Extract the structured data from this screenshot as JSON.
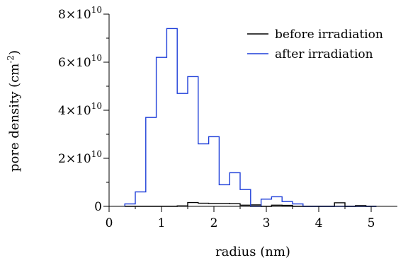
{
  "chart_data": {
    "type": "line",
    "xlabel": "radius (nm)",
    "ylabel": "pore density (cm",
    "ylabel_sup": "-2",
    "ylabel_close": ")",
    "xlim": [
      0,
      5.5
    ],
    "ylim": [
      0,
      80000000000
    ],
    "x_ticks": [
      0,
      1,
      2,
      3,
      4,
      5
    ],
    "x_tick_labels": [
      "0",
      "1",
      "2",
      "3",
      "4",
      "5"
    ],
    "y_ticks": [
      0,
      20000000000,
      40000000000,
      60000000000,
      80000000000
    ],
    "y_tick_labels": [
      {
        "base": "0",
        "exp": ""
      },
      {
        "base": "2×10",
        "exp": "10"
      },
      {
        "base": "4×10",
        "exp": "10"
      },
      {
        "base": "6×10",
        "exp": "10"
      },
      {
        "base": "8×10",
        "exp": "10"
      }
    ],
    "legend_position": "top-right",
    "bin_edges": [
      0.3,
      0.5,
      0.7,
      0.9,
      1.1,
      1.3,
      1.5,
      1.7,
      1.9,
      2.1,
      2.3,
      2.5,
      2.7,
      2.9,
      3.1,
      3.3,
      3.5,
      3.7,
      3.9,
      4.1,
      4.3,
      4.5,
      4.7,
      4.9,
      5.1
    ],
    "series": [
      {
        "name": "before irradiation",
        "color": "#000000",
        "values": [
          0,
          0,
          0,
          0,
          0,
          200000000,
          1600000000,
          1300000000,
          1200000000,
          1200000000,
          1100000000,
          500000000,
          600000000,
          0,
          500000000,
          400000000,
          0,
          0,
          0,
          0,
          1500000000,
          0,
          300000000,
          0
        ]
      },
      {
        "name": "after irradiation",
        "color": "#1f3fd9",
        "values": [
          1000000000,
          6000000000,
          37000000000,
          62000000000,
          74000000000,
          47000000000,
          54000000000,
          26000000000,
          29000000000,
          9000000000,
          14000000000,
          7000000000,
          0,
          3000000000,
          4000000000,
          2000000000,
          1000000000,
          0,
          0,
          0,
          0,
          0,
          0,
          0
        ]
      }
    ]
  }
}
